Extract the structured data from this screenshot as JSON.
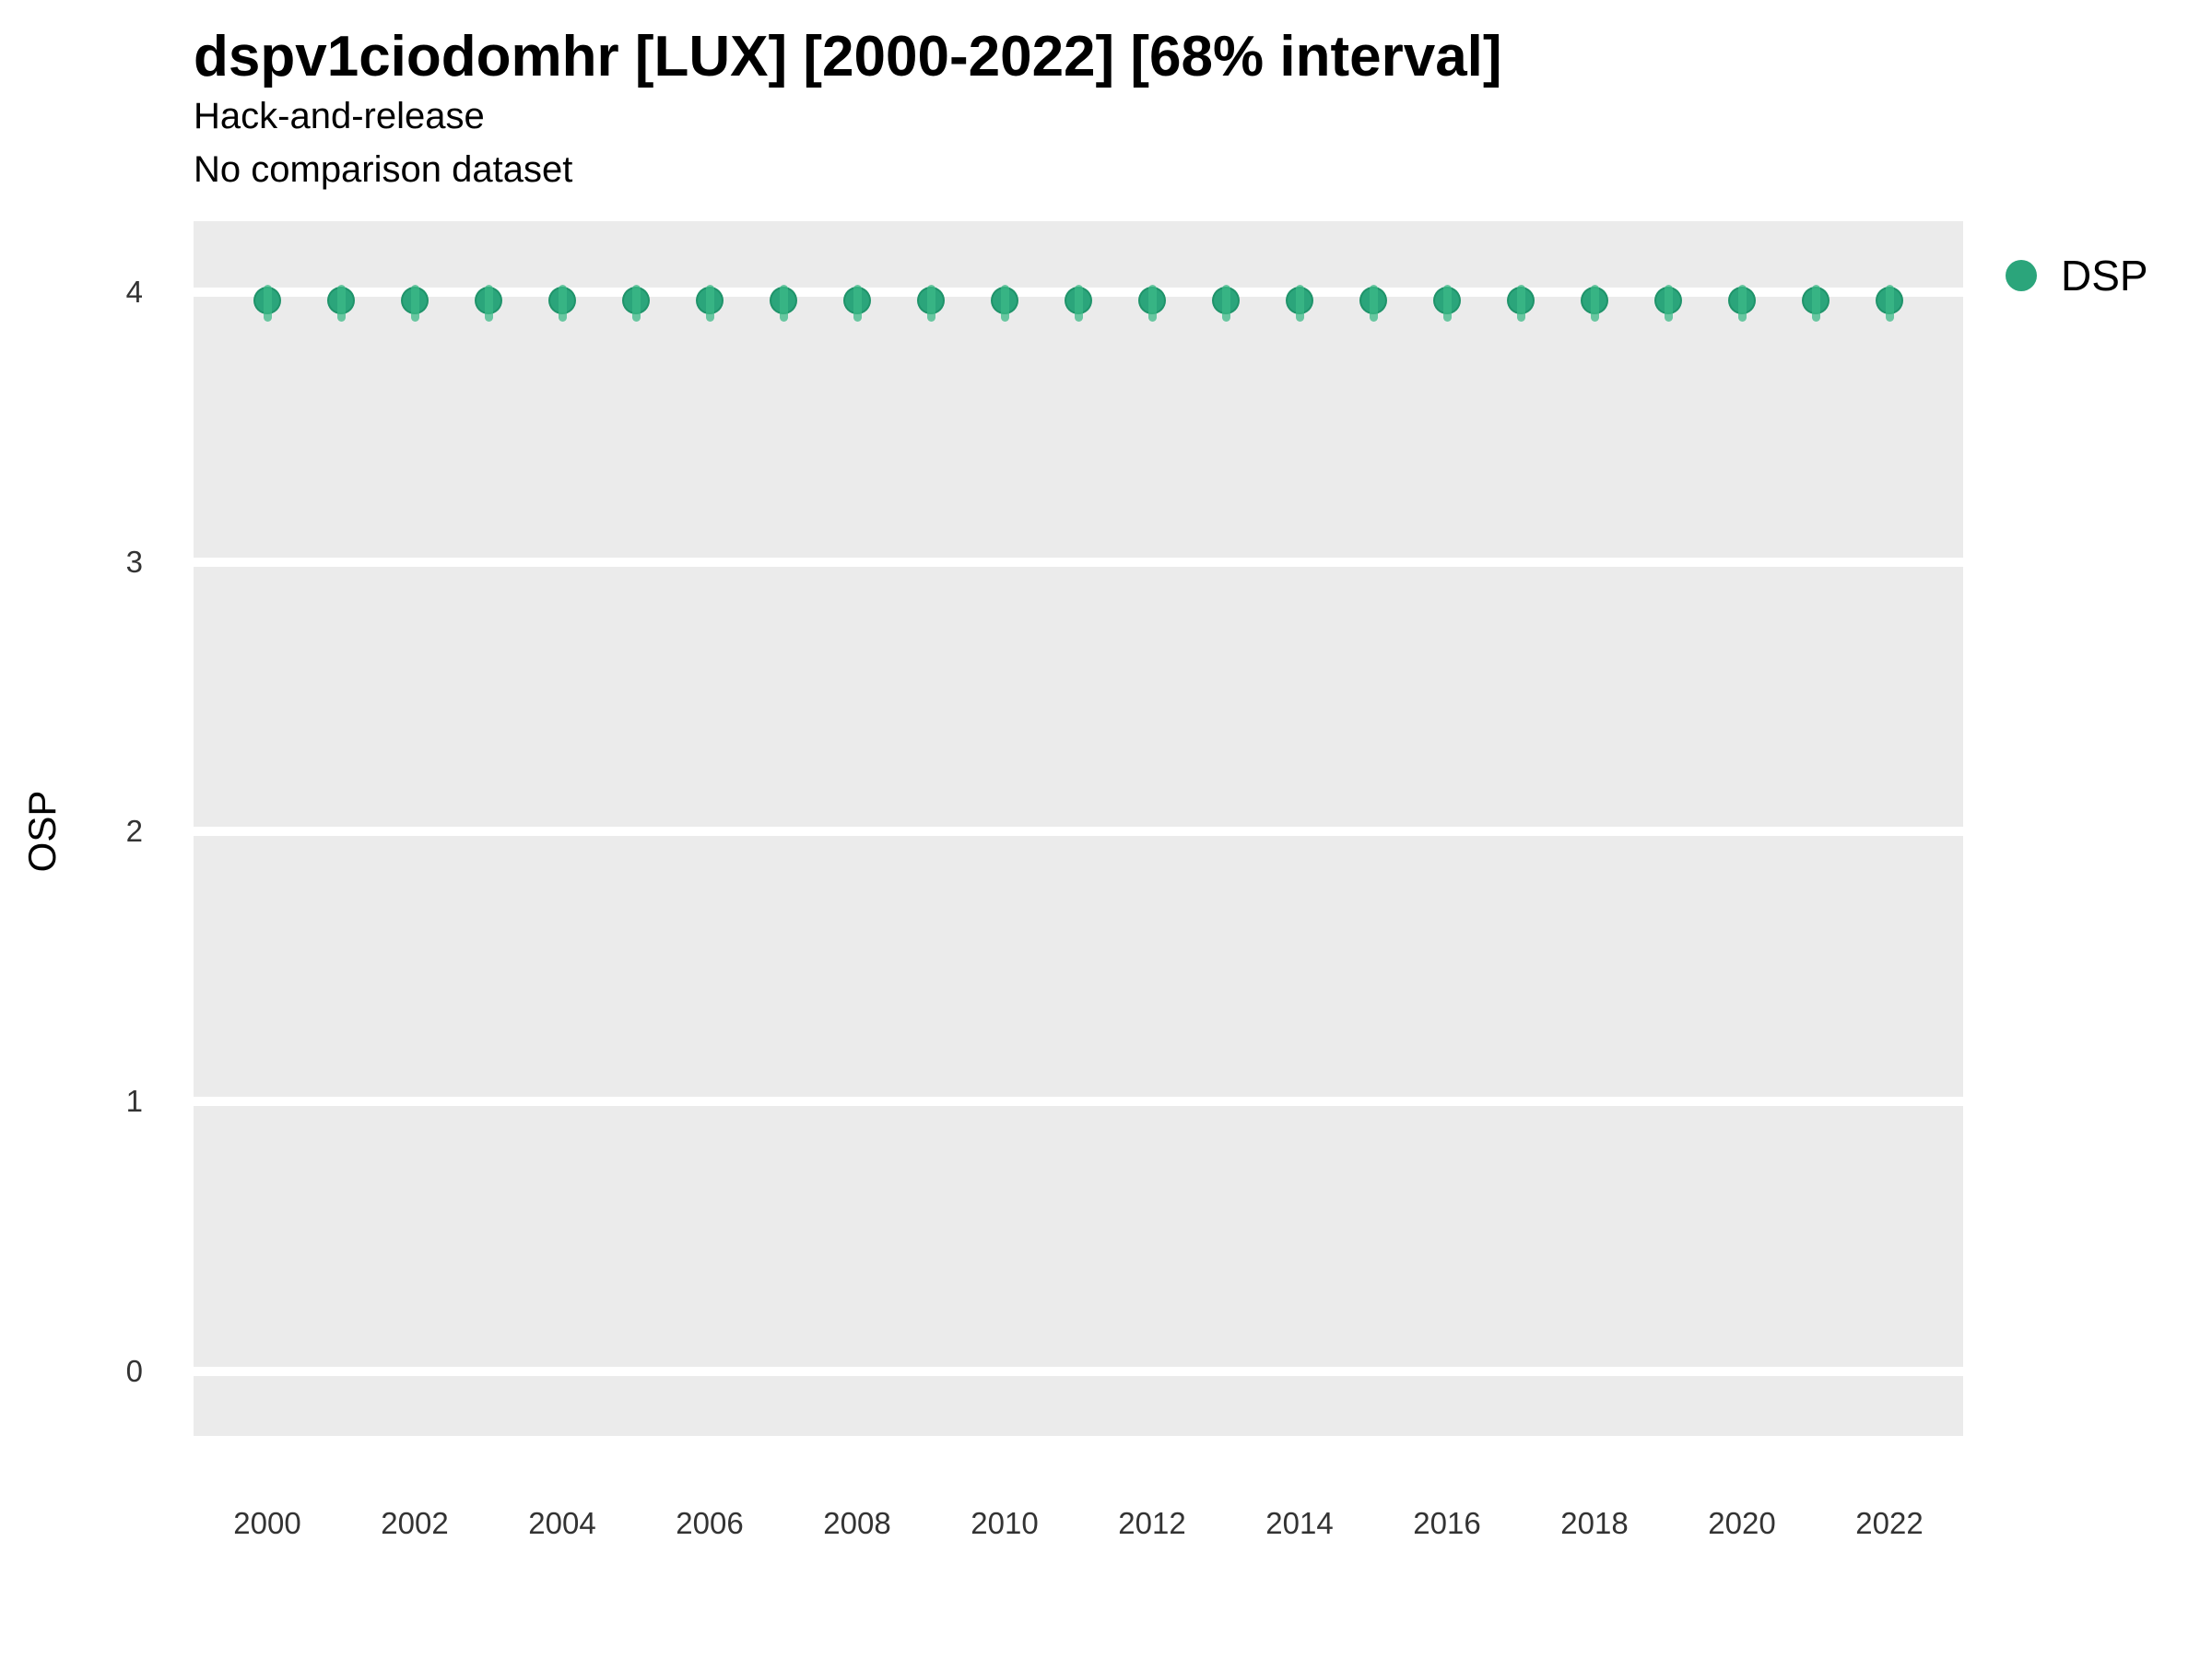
{
  "chart": {
    "title": "dspv1ciodomhr [LUX] [2000-2022] [68% interval]",
    "subtitle1": "Hack-and-release",
    "subtitle2": "No comparison dataset",
    "y_axis_title": "OSP",
    "legend": {
      "label": "DSP"
    }
  },
  "colors": {
    "point_fill": "#2BA57B",
    "point_edge": "rgba(20,130,90,0.5)",
    "interval_line": "rgba(60,185,135,0.75)",
    "panel_bg": "#EBEBEB",
    "gridline": "#FFFFFF",
    "tick_text": "#333333"
  },
  "chart_data": {
    "type": "scatter",
    "title": "dspv1ciodomhr [LUX] [2000-2022] [68% interval]",
    "subtitle": [
      "Hack-and-release",
      "No comparison dataset"
    ],
    "xlabel": "",
    "ylabel": "OSP",
    "legend_position": "right",
    "grid": "horizontal major gridlines only, white on gray panel",
    "xlim": [
      1999,
      2023
    ],
    "ylim": [
      -0.25,
      4.26
    ],
    "x_ticks": [
      2000,
      2002,
      2004,
      2006,
      2008,
      2010,
      2012,
      2014,
      2016,
      2018,
      2020,
      2022
    ],
    "y_ticks": [
      0,
      1,
      2,
      3,
      4
    ],
    "series": [
      {
        "name": "DSP",
        "x": [
          2000,
          2001,
          2002,
          2003,
          2004,
          2005,
          2006,
          2007,
          2008,
          2009,
          2010,
          2011,
          2012,
          2013,
          2014,
          2015,
          2016,
          2017,
          2018,
          2019,
          2020,
          2021,
          2022
        ],
        "y": [
          3.97,
          3.97,
          3.97,
          3.97,
          3.97,
          3.97,
          3.97,
          3.97,
          3.97,
          3.97,
          3.97,
          3.97,
          3.97,
          3.97,
          3.97,
          3.97,
          3.97,
          3.97,
          3.97,
          3.97,
          3.97,
          3.97,
          3.97
        ],
        "interval_low": 3.9,
        "interval_high": 4.03
      }
    ]
  }
}
